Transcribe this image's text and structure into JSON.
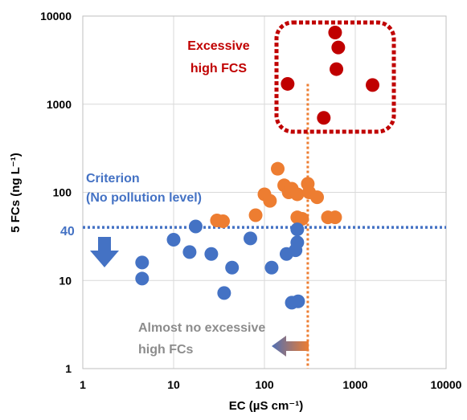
{
  "chart_data": {
    "type": "scatter",
    "x_scale": "log",
    "y_scale": "log",
    "xlim": [
      1,
      10000
    ],
    "ylim": [
      1,
      10000
    ],
    "x_ticks": [
      "1",
      "10",
      "100",
      "1000",
      "10000"
    ],
    "y_ticks": [
      "1",
      "10",
      "100",
      "1000",
      "10000"
    ],
    "xlabel": "EC (µS cm⁻¹)",
    "ylabel": "5 FCs (ng L⁻¹)",
    "grid": true,
    "series": [
      {
        "color": "#c00000",
        "points": [
          [
            180,
            1700
          ],
          [
            600,
            6500
          ],
          [
            650,
            4400
          ],
          [
            620,
            2500
          ],
          [
            1550,
            1650
          ],
          [
            450,
            700
          ]
        ]
      },
      {
        "color": "#ed7d31",
        "points": [
          [
            30,
            48
          ],
          [
            35,
            47
          ],
          [
            80,
            55
          ],
          [
            100,
            95
          ],
          [
            115,
            80
          ],
          [
            140,
            185
          ],
          [
            165,
            120
          ],
          [
            185,
            100
          ],
          [
            200,
            110
          ],
          [
            230,
            95
          ],
          [
            230,
            52
          ],
          [
            260,
            50
          ],
          [
            300,
            125
          ],
          [
            310,
            100
          ],
          [
            380,
            88
          ],
          [
            500,
            52
          ],
          [
            600,
            52
          ]
        ]
      },
      {
        "color": "#4472c4",
        "points": [
          [
            4.5,
            16
          ],
          [
            4.5,
            10.5
          ],
          [
            10,
            29
          ],
          [
            15,
            21
          ],
          [
            17.5,
            41
          ],
          [
            26,
            20
          ],
          [
            36,
            7.2
          ],
          [
            44,
            14
          ],
          [
            70,
            30
          ],
          [
            120,
            14
          ],
          [
            175,
            20
          ],
          [
            220,
            22
          ],
          [
            230,
            38
          ],
          [
            230,
            27
          ],
          [
            200,
            5.6
          ],
          [
            235,
            5.8
          ]
        ]
      }
    ],
    "criterion": {
      "value": 40,
      "value_label": "40",
      "label_line1": "Criterion",
      "label_line2": "(No pollution level)",
      "color": "#4472c4"
    },
    "ec_threshold": {
      "value": 300,
      "color": "#ed7d31"
    },
    "annotations": {
      "excessive_line1": "Excessive",
      "excessive_line2": "high FCS",
      "excessive_color": "#c00000",
      "almost_line1": "Almost no excessive",
      "almost_line2": "high FCs",
      "almost_color": "#8c8c8c"
    }
  }
}
